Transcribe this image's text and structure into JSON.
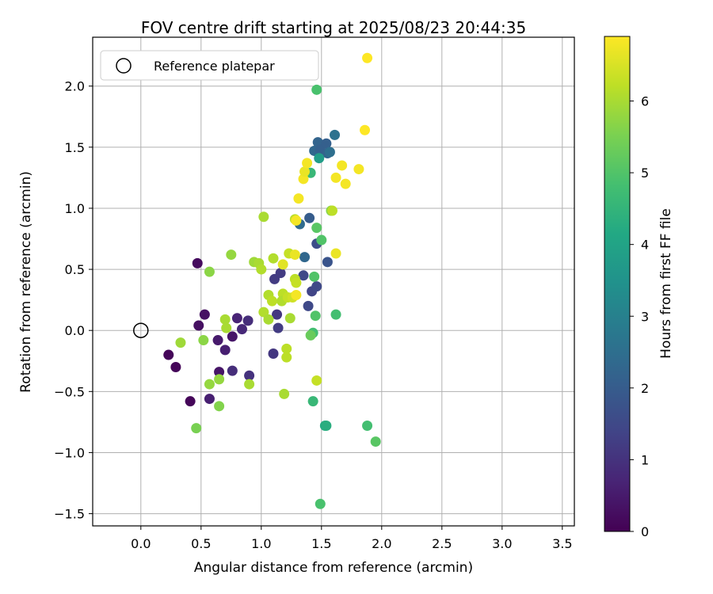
{
  "chart_data": {
    "type": "scatter",
    "title": "FOV centre drift starting at 2025/08/23 20:44:35",
    "xlabel": "Angular distance from reference (arcmin)",
    "ylabel": "Rotation from reference (arcmin)",
    "xlim": [
      -0.4,
      3.6
    ],
    "ylim": [
      -1.6,
      2.4
    ],
    "xticks": [
      "0.0",
      "0.5",
      "1.0",
      "1.5",
      "2.0",
      "2.5",
      "3.0",
      "3.5"
    ],
    "xtick_values": [
      0,
      0.5,
      1,
      1.5,
      2,
      2.5,
      3,
      3.5
    ],
    "yticks": [
      "−1.5",
      "−1.0",
      "−0.5",
      "0.0",
      "0.5",
      "1.0",
      "1.5",
      "2.0"
    ],
    "ytick_values": [
      -1.5,
      -1,
      -0.5,
      0,
      0.5,
      1,
      1.5,
      2
    ],
    "grid": true,
    "legend": {
      "placement": "top-left",
      "entries": [
        {
          "label": "Reference platepar",
          "marker": "open-circle"
        }
      ]
    },
    "reference_point": {
      "x": 0.0,
      "y": 0.0
    },
    "colorbar": {
      "label": "Hours from first FF file",
      "range": [
        0,
        6.9
      ],
      "ticks": [
        "0",
        "1",
        "2",
        "3",
        "4",
        "5",
        "6"
      ],
      "tick_values": [
        0,
        1,
        2,
        3,
        4,
        5,
        6
      ],
      "colormap": "viridis"
    },
    "points": [
      {
        "x": 0.23,
        "y": -0.2,
        "c": 0.1
      },
      {
        "x": 0.29,
        "y": -0.3,
        "c": 0.1
      },
      {
        "x": 0.41,
        "y": -0.58,
        "c": 0.1
      },
      {
        "x": 0.47,
        "y": 0.55,
        "c": 0.2
      },
      {
        "x": 0.48,
        "y": 0.04,
        "c": 0.3
      },
      {
        "x": 0.53,
        "y": 0.13,
        "c": 0.3
      },
      {
        "x": 0.57,
        "y": -0.56,
        "c": 0.6
      },
      {
        "x": 0.64,
        "y": -0.08,
        "c": 0.5
      },
      {
        "x": 0.65,
        "y": -0.34,
        "c": 0.4
      },
      {
        "x": 0.7,
        "y": -0.16,
        "c": 0.6
      },
      {
        "x": 0.76,
        "y": -0.05,
        "c": 0.4
      },
      {
        "x": 0.76,
        "y": -0.33,
        "c": 0.9
      },
      {
        "x": 0.8,
        "y": 0.1,
        "c": 0.7
      },
      {
        "x": 0.84,
        "y": 0.01,
        "c": 0.8
      },
      {
        "x": 0.89,
        "y": 0.08,
        "c": 0.9
      },
      {
        "x": 0.9,
        "y": -0.37,
        "c": 1.0
      },
      {
        "x": 1.1,
        "y": -0.19,
        "c": 1.1
      },
      {
        "x": 1.11,
        "y": 0.42,
        "c": 1.2
      },
      {
        "x": 1.13,
        "y": 0.13,
        "c": 1.1
      },
      {
        "x": 1.14,
        "y": 0.02,
        "c": 1.2
      },
      {
        "x": 1.16,
        "y": 0.47,
        "c": 1.2
      },
      {
        "x": 1.35,
        "y": 0.45,
        "c": 1.5
      },
      {
        "x": 1.39,
        "y": 0.2,
        "c": 1.5
      },
      {
        "x": 1.42,
        "y": 0.32,
        "c": 1.4
      },
      {
        "x": 1.46,
        "y": 0.36,
        "c": 1.5
      },
      {
        "x": 1.46,
        "y": 0.71,
        "c": 1.6
      },
      {
        "x": 1.55,
        "y": 0.56,
        "c": 1.8
      },
      {
        "x": 1.36,
        "y": 0.6,
        "c": 2.3
      },
      {
        "x": 1.32,
        "y": 0.87,
        "c": 2.4
      },
      {
        "x": 1.4,
        "y": 0.92,
        "c": 2.0
      },
      {
        "x": 1.44,
        "y": 1.47,
        "c": 2.3
      },
      {
        "x": 1.47,
        "y": 1.54,
        "c": 2.2
      },
      {
        "x": 1.49,
        "y": 1.48,
        "c": 2.1
      },
      {
        "x": 1.54,
        "y": 1.53,
        "c": 2.1
      },
      {
        "x": 1.55,
        "y": 1.45,
        "c": 2.2
      },
      {
        "x": 1.57,
        "y": 1.46,
        "c": 2.5
      },
      {
        "x": 1.61,
        "y": 1.6,
        "c": 2.6
      },
      {
        "x": 1.48,
        "y": 1.41,
        "c": 3.8
      },
      {
        "x": 1.41,
        "y": 1.29,
        "c": 4.6
      },
      {
        "x": 1.53,
        "y": -0.78,
        "c": 4.2
      },
      {
        "x": 1.54,
        "y": -0.78,
        "c": 4.3
      },
      {
        "x": 1.43,
        "y": -0.58,
        "c": 4.6
      },
      {
        "x": 1.43,
        "y": -0.02,
        "c": 4.8
      },
      {
        "x": 1.44,
        "y": 0.44,
        "c": 5.0
      },
      {
        "x": 1.45,
        "y": 0.12,
        "c": 5.0
      },
      {
        "x": 1.46,
        "y": 0.84,
        "c": 5.1
      },
      {
        "x": 1.49,
        "y": -1.42,
        "c": 4.9
      },
      {
        "x": 1.5,
        "y": 0.74,
        "c": 5.0
      },
      {
        "x": 1.46,
        "y": 1.97,
        "c": 4.9
      },
      {
        "x": 1.62,
        "y": 0.13,
        "c": 4.8
      },
      {
        "x": 1.88,
        "y": -0.78,
        "c": 4.8
      },
      {
        "x": 1.95,
        "y": -0.91,
        "c": 5.1
      },
      {
        "x": 1.41,
        "y": -0.04,
        "c": 5.3
      },
      {
        "x": 1.58,
        "y": 0.98,
        "c": 5.6
      },
      {
        "x": 0.33,
        "y": -0.1,
        "c": 5.9
      },
      {
        "x": 0.46,
        "y": -0.8,
        "c": 5.5
      },
      {
        "x": 0.52,
        "y": -0.08,
        "c": 5.7
      },
      {
        "x": 0.57,
        "y": -0.44,
        "c": 5.8
      },
      {
        "x": 0.57,
        "y": 0.48,
        "c": 5.7
      },
      {
        "x": 0.65,
        "y": -0.62,
        "c": 5.6
      },
      {
        "x": 0.65,
        "y": -0.4,
        "c": 5.8
      },
      {
        "x": 0.7,
        "y": 0.09,
        "c": 6.0
      },
      {
        "x": 0.71,
        "y": 0.02,
        "c": 6.0
      },
      {
        "x": 0.75,
        "y": 0.62,
        "c": 5.8
      },
      {
        "x": 0.9,
        "y": -0.44,
        "c": 6.0
      },
      {
        "x": 0.94,
        "y": 0.56,
        "c": 5.9
      },
      {
        "x": 0.98,
        "y": 0.55,
        "c": 6.0
      },
      {
        "x": 1.0,
        "y": 0.5,
        "c": 6.1
      },
      {
        "x": 1.02,
        "y": 0.93,
        "c": 6.0
      },
      {
        "x": 1.02,
        "y": 0.15,
        "c": 6.1
      },
      {
        "x": 1.06,
        "y": 0.29,
        "c": 6.1
      },
      {
        "x": 1.06,
        "y": 0.09,
        "c": 6.0
      },
      {
        "x": 1.09,
        "y": 0.24,
        "c": 6.2
      },
      {
        "x": 1.1,
        "y": 0.59,
        "c": 6.1
      },
      {
        "x": 1.18,
        "y": 0.3,
        "c": 6.2
      },
      {
        "x": 1.17,
        "y": 0.24,
        "c": 6.1
      },
      {
        "x": 1.19,
        "y": -0.52,
        "c": 6.0
      },
      {
        "x": 1.21,
        "y": -0.15,
        "c": 6.2
      },
      {
        "x": 1.21,
        "y": -0.22,
        "c": 6.2
      },
      {
        "x": 1.22,
        "y": 0.27,
        "c": 6.3
      },
      {
        "x": 1.24,
        "y": 0.1,
        "c": 6.0
      },
      {
        "x": 1.23,
        "y": 0.63,
        "c": 6.3
      },
      {
        "x": 1.26,
        "y": 0.27,
        "c": 6.4
      },
      {
        "x": 1.28,
        "y": 0.42,
        "c": 6.2
      },
      {
        "x": 1.29,
        "y": 0.39,
        "c": 6.3
      },
      {
        "x": 1.28,
        "y": 0.91,
        "c": 6.2
      },
      {
        "x": 1.46,
        "y": -0.41,
        "c": 6.3
      },
      {
        "x": 1.59,
        "y": 0.98,
        "c": 6.2
      },
      {
        "x": 1.18,
        "y": 0.54,
        "c": 6.6
      },
      {
        "x": 1.28,
        "y": 0.62,
        "c": 6.7
      },
      {
        "x": 1.29,
        "y": 0.29,
        "c": 6.8
      },
      {
        "x": 1.29,
        "y": 0.9,
        "c": 6.8
      },
      {
        "x": 1.31,
        "y": 1.08,
        "c": 6.8
      },
      {
        "x": 1.35,
        "y": 1.24,
        "c": 6.8
      },
      {
        "x": 1.36,
        "y": 1.3,
        "c": 6.7
      },
      {
        "x": 1.38,
        "y": 1.37,
        "c": 6.8
      },
      {
        "x": 1.62,
        "y": 0.63,
        "c": 6.7
      },
      {
        "x": 1.62,
        "y": 1.25,
        "c": 6.8
      },
      {
        "x": 1.67,
        "y": 1.35,
        "c": 6.8
      },
      {
        "x": 1.7,
        "y": 1.2,
        "c": 6.8
      },
      {
        "x": 1.81,
        "y": 1.32,
        "c": 6.8
      },
      {
        "x": 1.86,
        "y": 1.64,
        "c": 6.9
      },
      {
        "x": 1.88,
        "y": 2.23,
        "c": 6.9
      }
    ]
  }
}
